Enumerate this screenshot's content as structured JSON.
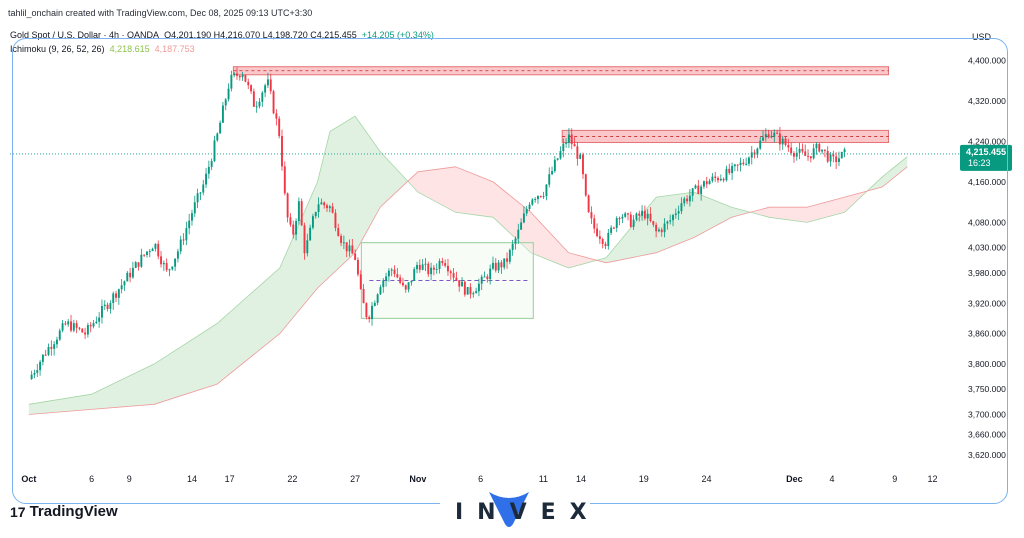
{
  "attribution": "tahlil_onchain created with TradingView.com, Dec 08, 2025 09:13 UTC+3:30",
  "legend": {
    "symbol": "Gold Spot / U.S. Dollar · 4h · OANDA",
    "ohlc": "O4,201.190 H4,216.070 L4,198.720 C4,215.455",
    "change": "+14.205 (+0.34%)",
    "indicator": "Ichimoku (9, 26, 52, 26)",
    "ich_a": "4,218.615",
    "ich_b": "4,187.753"
  },
  "footer": {
    "logo_mark": "17",
    "platform": "TradingView",
    "brand": "INVEX"
  },
  "colors": {
    "up": "#089981",
    "down": "#f23645",
    "cloud_bull": "#c8e6c9",
    "cloud_bear": "#ffcdd2",
    "zone": "#f8b4b9",
    "box": "#a5d6a7",
    "price_line": "#089981",
    "frame": "#7ab3f0"
  },
  "chart_data": {
    "type": "candlestick",
    "currency": "USD",
    "last_price": {
      "value": 4215.455,
      "label": "4,215.455",
      "countdown": "16:23"
    },
    "y_ticks": [
      {
        "v": 4400,
        "label": "4,400.000"
      },
      {
        "v": 4320,
        "label": "4,320.000"
      },
      {
        "v": 4240,
        "label": "4,240.000"
      },
      {
        "v": 4160,
        "label": "4,160.000"
      },
      {
        "v": 4080,
        "label": "4,080.000"
      },
      {
        "v": 4030,
        "label": "4,030.000"
      },
      {
        "v": 3980,
        "label": "3,980.000"
      },
      {
        "v": 3920,
        "label": "3,920.000"
      },
      {
        "v": 3860,
        "label": "3,860.000"
      },
      {
        "v": 3800,
        "label": "3,800.000"
      },
      {
        "v": 3750,
        "label": "3,750.000"
      },
      {
        "v": 3700,
        "label": "3,700.000"
      },
      {
        "v": 3660,
        "label": "3,660.000"
      },
      {
        "v": 3620,
        "label": "3,620.000"
      }
    ],
    "x_ticks": [
      {
        "label": "Oct",
        "day": 0,
        "bold": true
      },
      {
        "label": "6",
        "day": 5
      },
      {
        "label": "9",
        "day": 8
      },
      {
        "label": "14",
        "day": 13
      },
      {
        "label": "17",
        "day": 16
      },
      {
        "label": "22",
        "day": 21
      },
      {
        "label": "27",
        "day": 26
      },
      {
        "label": "Nov",
        "day": 31,
        "bold": true
      },
      {
        "label": "6",
        "day": 36
      },
      {
        "label": "11",
        "day": 41
      },
      {
        "label": "14",
        "day": 44
      },
      {
        "label": "19",
        "day": 49
      },
      {
        "label": "24",
        "day": 54
      },
      {
        "label": "Dec",
        "day": 61,
        "bold": true
      },
      {
        "label": "4",
        "day": 64
      },
      {
        "label": "9",
        "day": 69
      },
      {
        "label": "12",
        "day": 72
      }
    ],
    "price_path": [
      [
        0,
        3770
      ],
      [
        1.5,
        3830
      ],
      [
        3,
        3880
      ],
      [
        4.5,
        3860
      ],
      [
        6,
        3910
      ],
      [
        7.5,
        3960
      ],
      [
        9,
        4010
      ],
      [
        10,
        4040
      ],
      [
        11,
        3980
      ],
      [
        12,
        4030
      ],
      [
        13,
        4100
      ],
      [
        14,
        4160
      ],
      [
        15,
        4250
      ],
      [
        16,
        4360
      ],
      [
        17,
        4380
      ],
      [
        18,
        4310
      ],
      [
        19,
        4360
      ],
      [
        20,
        4250
      ],
      [
        20.5,
        4100
      ],
      [
        21,
        4050
      ],
      [
        21.5,
        4120
      ],
      [
        22,
        4020
      ],
      [
        23,
        4120
      ],
      [
        24,
        4110
      ],
      [
        25,
        4040
      ],
      [
        26,
        4010
      ],
      [
        26.5,
        3930
      ],
      [
        27,
        3890
      ],
      [
        28,
        3960
      ],
      [
        29,
        3990
      ],
      [
        30,
        3940
      ],
      [
        31,
        4000
      ],
      [
        32,
        3980
      ],
      [
        33,
        4010
      ],
      [
        34,
        3970
      ],
      [
        35,
        3940
      ],
      [
        36,
        3960
      ],
      [
        37,
        3990
      ],
      [
        38,
        4000
      ],
      [
        39,
        4060
      ],
      [
        40,
        4130
      ],
      [
        41,
        4140
      ],
      [
        42,
        4200
      ],
      [
        43,
        4250
      ],
      [
        44,
        4200
      ],
      [
        44.5,
        4100
      ],
      [
        45,
        4070
      ],
      [
        46,
        4040
      ],
      [
        47,
        4100
      ],
      [
        48,
        4080
      ],
      [
        49,
        4100
      ],
      [
        50,
        4060
      ],
      [
        51,
        4080
      ],
      [
        52,
        4120
      ],
      [
        53,
        4140
      ],
      [
        54,
        4160
      ],
      [
        55,
        4170
      ],
      [
        56,
        4180
      ],
      [
        57,
        4200
      ],
      [
        58,
        4230
      ],
      [
        59,
        4260
      ],
      [
        60,
        4240
      ],
      [
        61,
        4220
      ],
      [
        62,
        4210
      ],
      [
        63,
        4230
      ],
      [
        64,
        4200
      ],
      [
        65,
        4215
      ]
    ],
    "cloud_lines": {
      "span_a": [
        [
          0,
          3720
        ],
        [
          5,
          3740
        ],
        [
          10,
          3800
        ],
        [
          15,
          3880
        ],
        [
          20,
          3990
        ],
        [
          23,
          4160
        ],
        [
          24,
          4260
        ],
        [
          26,
          4290
        ],
        [
          28,
          4220
        ],
        [
          31,
          4140
        ],
        [
          34,
          4100
        ],
        [
          37,
          4090
        ],
        [
          40,
          4020
        ],
        [
          43,
          3990
        ],
        [
          46,
          4010
        ],
        [
          50,
          4130
        ],
        [
          53,
          4140
        ],
        [
          56,
          4110
        ],
        [
          59,
          4090
        ],
        [
          62,
          4080
        ],
        [
          65,
          4100
        ],
        [
          68,
          4170
        ],
        [
          70,
          4210
        ]
      ],
      "span_b": [
        [
          0,
          3700
        ],
        [
          5,
          3710
        ],
        [
          10,
          3720
        ],
        [
          15,
          3760
        ],
        [
          20,
          3860
        ],
        [
          23,
          3950
        ],
        [
          26,
          4020
        ],
        [
          28,
          4110
        ],
        [
          31,
          4180
        ],
        [
          34,
          4190
        ],
        [
          37,
          4160
        ],
        [
          40,
          4100
        ],
        [
          43,
          4020
        ],
        [
          46,
          4000
        ],
        [
          50,
          4020
        ],
        [
          53,
          4050
        ],
        [
          56,
          4090
        ],
        [
          59,
          4110
        ],
        [
          62,
          4110
        ],
        [
          65,
          4130
        ],
        [
          68,
          4150
        ],
        [
          70,
          4190
        ]
      ]
    },
    "annotations": [
      {
        "type": "resistance_zone",
        "x0": 16.3,
        "x1": 68.5,
        "y0": 4372,
        "y1": 4388
      },
      {
        "type": "resistance_zone",
        "x0": 42.5,
        "x1": 68.5,
        "y0": 4238,
        "y1": 4262
      },
      {
        "type": "range_box",
        "x0": 26.5,
        "x1": 40.2,
        "y0": 3890,
        "y1": 4040,
        "mid": 3965
      }
    ],
    "y_range": [
      3600,
      4425
    ],
    "x_range": [
      -1.5,
      73
    ]
  }
}
